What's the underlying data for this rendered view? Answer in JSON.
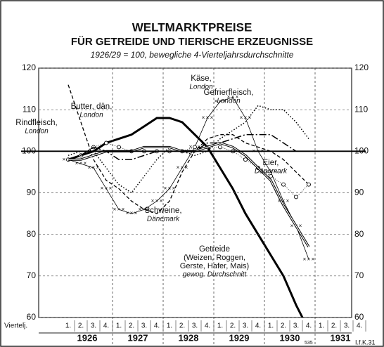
{
  "chart_data": {
    "type": "line",
    "title": "WELTMARKTPREISE",
    "subtitle": "FÜR GETREIDE UND TIERISCHE ERZEUGNISSE",
    "note": "1926/29 = 100, bewegliche 4-Vierteljahrsdurchschnitte",
    "x_label": "Viertelj.",
    "categories": [
      "1.",
      "2.",
      "3.",
      "4.",
      "1.",
      "2.",
      "3.",
      "4.",
      "1.",
      "2.",
      "3.",
      "4.",
      "1.",
      "2.",
      "3.",
      "4.",
      "1.",
      "2.",
      "3.",
      "4.",
      "1.",
      "2.",
      "3.",
      "4."
    ],
    "years": [
      "1926",
      "1927",
      "1928",
      "1929",
      "1930",
      "1931"
    ],
    "ylim": [
      60,
      120
    ],
    "yticks": [
      60,
      70,
      80,
      90,
      100,
      110,
      120
    ],
    "reference": 100,
    "grid": true,
    "series": [
      {
        "name": "Getreide",
        "labels": [
          "(Weizen, Roggen,",
          "Gerste, Hafer, Mais)"
        ],
        "sublabel": "gewog. Durchschnitt",
        "style": "thick",
        "color": "#000",
        "values": [
          98,
          99,
          100,
          102,
          103,
          104,
          106,
          108,
          108,
          107,
          104,
          101,
          96,
          91,
          85,
          80,
          75,
          70,
          63,
          57,
          null,
          null,
          null,
          null
        ]
      },
      {
        "name": "Schweine,",
        "sublabel": "Dänemark",
        "style": "dashed",
        "color": "#000",
        "values": [
          116,
          107,
          98,
          93,
          91,
          88,
          86,
          85,
          88,
          95,
          100,
          103,
          104,
          104,
          102,
          101,
          100,
          98,
          95,
          92,
          null,
          null,
          null,
          null
        ]
      },
      {
        "name": "Käse,",
        "sublabel": "London",
        "style": "crosses",
        "color": "#000",
        "values": [
          98,
          97,
          96,
          91,
          86,
          85,
          86,
          88,
          91,
          96,
          101,
          108,
          112,
          113,
          108,
          100,
          95,
          88,
          82,
          74,
          null,
          null,
          null,
          null
        ]
      },
      {
        "name": "Gefrierfleisch,",
        "sublabel": "London",
        "style": "dotted",
        "color": "#000",
        "values": [
          99,
          100,
          100,
          96,
          92,
          90,
          94,
          98,
          101,
          100,
          99,
          100,
          103,
          105,
          107,
          111,
          110,
          110,
          107,
          103,
          null,
          null,
          null,
          null
        ]
      },
      {
        "name": "Eier,",
        "sublabel": "Dänemark",
        "style": "circles",
        "color": "#000",
        "values": [
          98,
          99,
          101,
          102,
          101,
          100,
          100,
          100,
          100,
          100,
          101,
          101,
          101,
          100,
          98,
          96,
          94,
          92,
          89,
          92,
          null,
          null,
          null,
          null
        ]
      },
      {
        "name": "Rindfleisch,",
        "sublabel": "London",
        "style": "dashdot",
        "color": "#000",
        "values": [
          98,
          99,
          101,
          100,
          98,
          98,
          99,
          100,
          100,
          100,
          100,
          102,
          102,
          103,
          104,
          104,
          104,
          102,
          100,
          null,
          null,
          null,
          null,
          null
        ]
      },
      {
        "name": "Butter, dän.",
        "sublabel": "London",
        "style": "double",
        "color": "#000",
        "values": [
          98,
          98,
          99,
          100,
          100,
          100,
          101,
          101,
          101,
          100,
          100,
          101,
          102,
          101,
          99,
          96,
          93,
          87,
          82,
          77,
          null,
          null,
          null,
          null
        ]
      }
    ],
    "footnote": "535",
    "source": "I.f.K.31"
  }
}
